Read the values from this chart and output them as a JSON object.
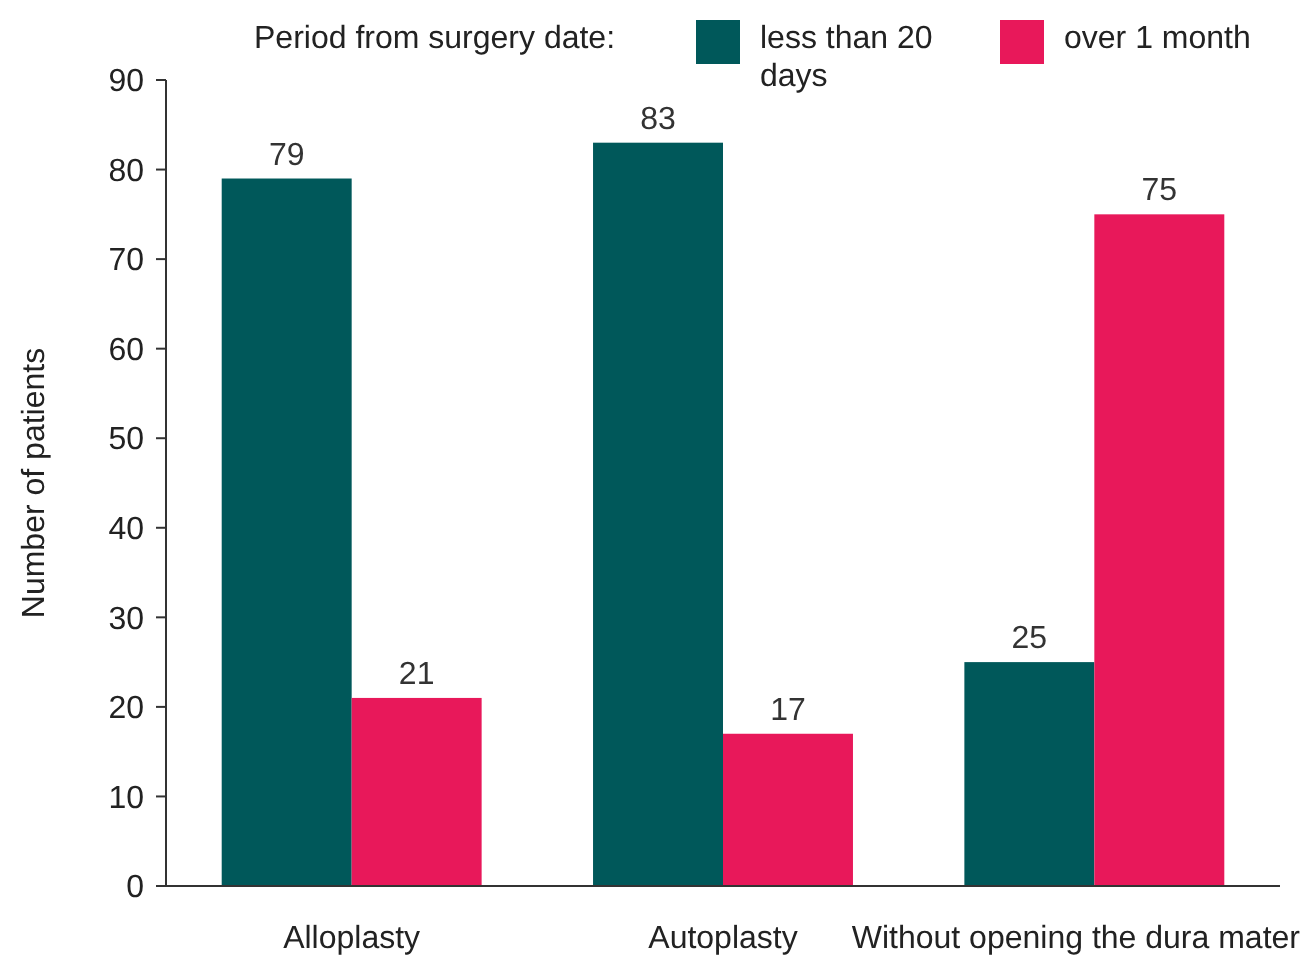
{
  "chart_data": {
    "type": "bar",
    "ylabel": "Number of patients",
    "legend_title": "Period from surgery date:",
    "categories": [
      "Alloplasty",
      "Autoplasty",
      "Without opening the dura mater"
    ],
    "series": [
      {
        "name": "less than 20 days",
        "color": "#00585a",
        "values": [
          79,
          83,
          25
        ]
      },
      {
        "name": "over 1 month",
        "color": "#e8185a",
        "values": [
          21,
          17,
          75
        ]
      }
    ],
    "ylim": [
      0,
      90
    ],
    "yticks": [
      0,
      10,
      20,
      30,
      40,
      50,
      60,
      70,
      80,
      90
    ],
    "data_labels": true,
    "grid": false,
    "legend": "top"
  }
}
